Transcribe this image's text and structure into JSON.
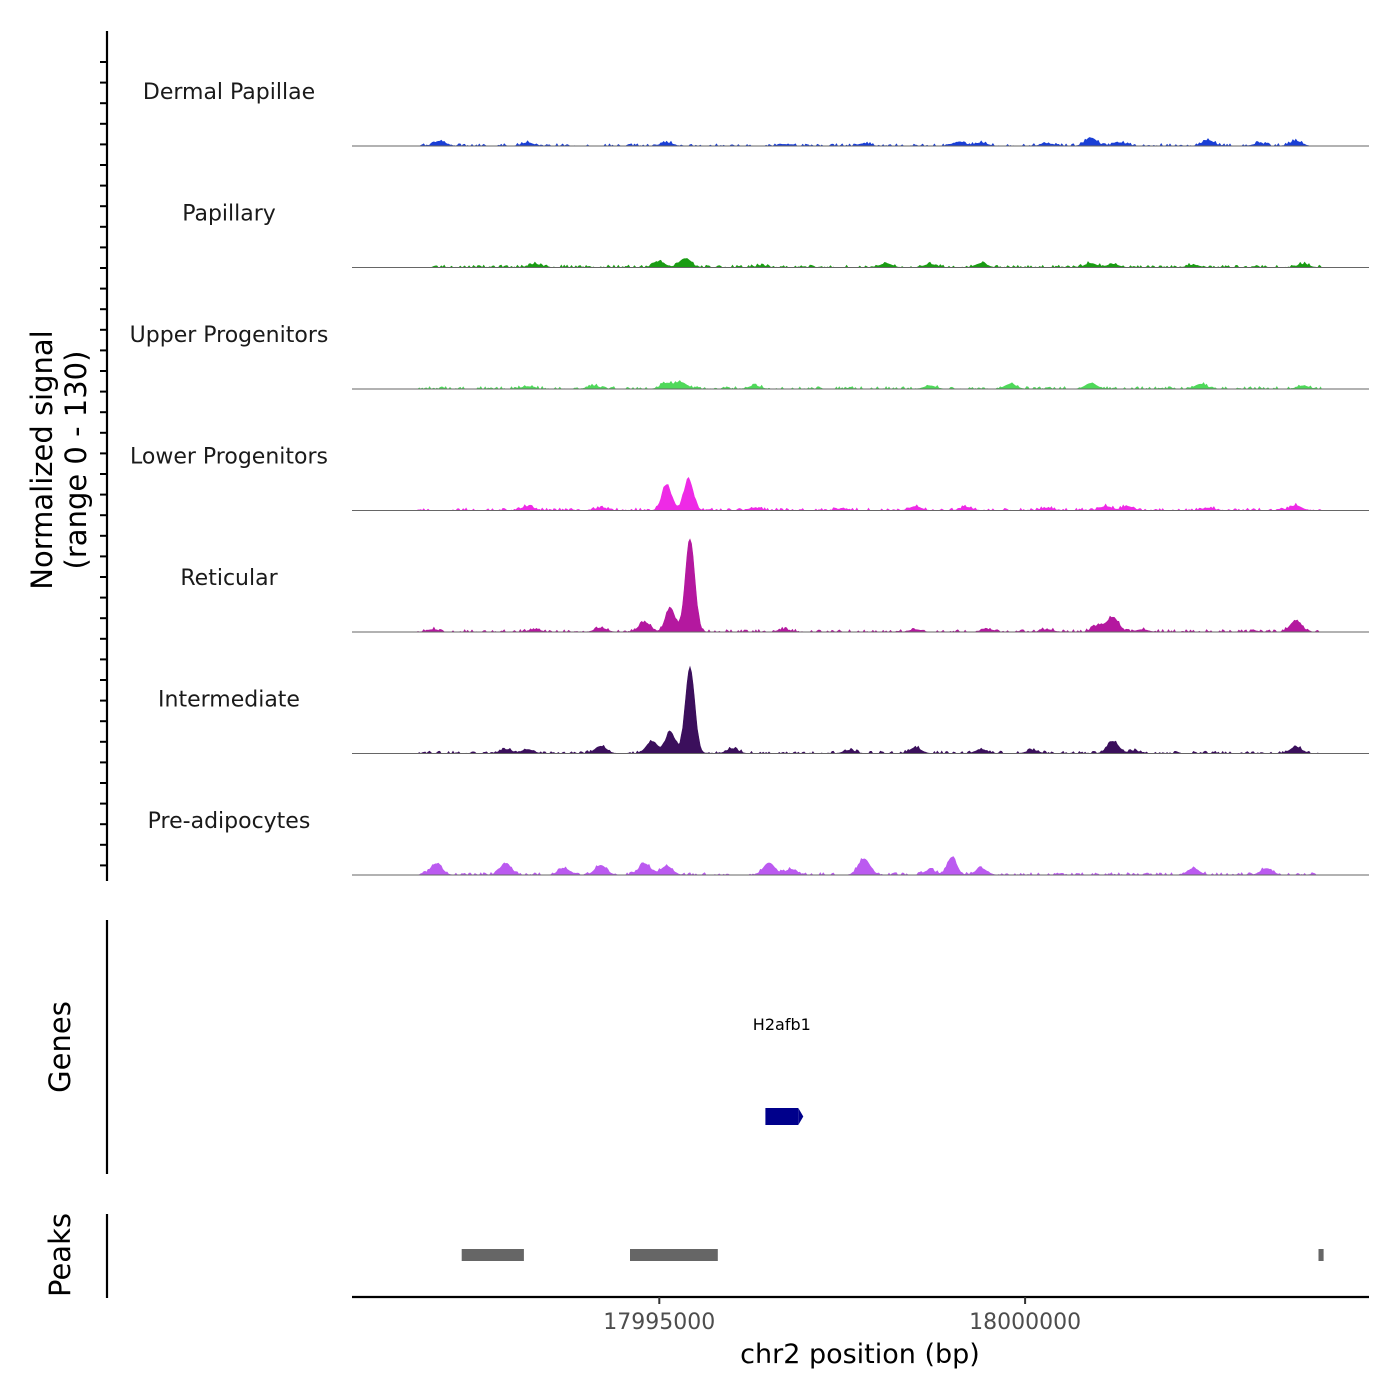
{
  "chart_data": {
    "type": "area",
    "title": "",
    "ylabel": "Normalized signal",
    "ylabel_range": "(range 0 - 130)",
    "xlabel": "chr2 position (bp)",
    "xlim": [
      17990800,
      18004700
    ],
    "ylim": [
      0,
      130
    ],
    "x_ticks": [
      17995000,
      18000000
    ],
    "x_tick_labels": [
      "17995000",
      "18000000"
    ],
    "series": [
      {
        "name": "Dermal Papillae",
        "color": "#1a3fd6",
        "peaks": [
          [
            17992000,
            6
          ],
          [
            17993200,
            4
          ],
          [
            17995100,
            4
          ],
          [
            17996700,
            2
          ],
          [
            17997800,
            3
          ],
          [
            17999100,
            5
          ],
          [
            17999400,
            4
          ],
          [
            18000300,
            3
          ],
          [
            18000900,
            10
          ],
          [
            18001300,
            4
          ],
          [
            18002500,
            7
          ],
          [
            18003200,
            3
          ],
          [
            18003700,
            6
          ]
        ]
      },
      {
        "name": "Papillary",
        "color": "#1a9c14",
        "peaks": [
          [
            17993300,
            4
          ],
          [
            17995000,
            7
          ],
          [
            17995350,
            11
          ],
          [
            17996400,
            2
          ],
          [
            17998100,
            5
          ],
          [
            17998700,
            4
          ],
          [
            17999400,
            5
          ],
          [
            18000900,
            5
          ],
          [
            18001200,
            4
          ],
          [
            18002300,
            3
          ],
          [
            18003800,
            4
          ]
        ]
      },
      {
        "name": "Upper Progenitors",
        "color": "#4fd95a",
        "peaks": [
          [
            17993200,
            3
          ],
          [
            17994100,
            4
          ],
          [
            17995100,
            7
          ],
          [
            17995300,
            8
          ],
          [
            17996300,
            4
          ],
          [
            17998700,
            4
          ],
          [
            17999800,
            6
          ],
          [
            18000900,
            7
          ],
          [
            18002400,
            6
          ],
          [
            18003800,
            4
          ]
        ]
      },
      {
        "name": "Lower Progenitors",
        "color": "#ee2ae6",
        "peaks": [
          [
            17993200,
            5
          ],
          [
            17994200,
            3
          ],
          [
            17995100,
            32
          ],
          [
            17995400,
            38
          ],
          [
            17996300,
            3
          ],
          [
            17997500,
            2
          ],
          [
            17998500,
            5
          ],
          [
            17999200,
            4
          ],
          [
            18000300,
            3
          ],
          [
            18001100,
            5
          ],
          [
            18001400,
            5
          ],
          [
            18002500,
            3
          ],
          [
            18003700,
            6
          ]
        ]
      },
      {
        "name": "Reticular",
        "color": "#b4189f",
        "peaks": [
          [
            17991900,
            3
          ],
          [
            17993300,
            3
          ],
          [
            17994200,
            5
          ],
          [
            17994800,
            12
          ],
          [
            17995150,
            30
          ],
          [
            17995420,
            115
          ],
          [
            17996700,
            3
          ],
          [
            17998500,
            3
          ],
          [
            17999500,
            3
          ],
          [
            18000300,
            3
          ],
          [
            18001000,
            8
          ],
          [
            18001200,
            18
          ],
          [
            18001600,
            3
          ],
          [
            18003700,
            14
          ]
        ]
      },
      {
        "name": "Intermediate",
        "color": "#3b0f5c",
        "peaks": [
          [
            17992900,
            5
          ],
          [
            17993200,
            5
          ],
          [
            17994200,
            9
          ],
          [
            17994900,
            15
          ],
          [
            17995150,
            27
          ],
          [
            17995420,
            105
          ],
          [
            17996000,
            6
          ],
          [
            17997600,
            4
          ],
          [
            17998500,
            7
          ],
          [
            17999400,
            5
          ],
          [
            18000100,
            4
          ],
          [
            18001200,
            15
          ],
          [
            18001500,
            3
          ],
          [
            18003700,
            8
          ]
        ]
      },
      {
        "name": "Pre-adipocytes",
        "color": "#bb5af0",
        "peaks": [
          [
            17991950,
            14
          ],
          [
            17992900,
            14
          ],
          [
            17993700,
            8
          ],
          [
            17994200,
            12
          ],
          [
            17994800,
            14
          ],
          [
            17995100,
            11
          ],
          [
            17996500,
            15
          ],
          [
            17996800,
            7
          ],
          [
            17997800,
            20
          ],
          [
            17998700,
            6
          ],
          [
            17999000,
            22
          ],
          [
            17999400,
            8
          ],
          [
            18002300,
            8
          ],
          [
            18003300,
            8
          ]
        ]
      }
    ],
    "genes": [
      {
        "name": "H2afb1",
        "start": 17996450,
        "end": 17996900,
        "strand": "+"
      }
    ],
    "peaks_track": [
      {
        "start": 17992300,
        "end": 17993150
      },
      {
        "start": 17994600,
        "end": 17995800
      },
      {
        "start": 18004010,
        "end": 18004080
      }
    ],
    "panel_labels": {
      "genes": "Genes",
      "peaks": "Peaks"
    }
  }
}
